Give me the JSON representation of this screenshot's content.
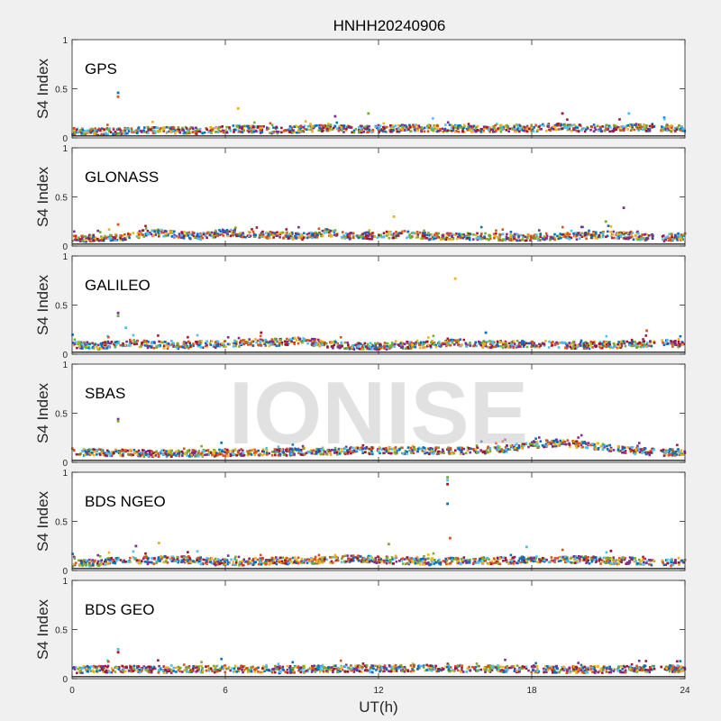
{
  "figure": {
    "title": "HNHH20240906",
    "xlabel": "UT(h)",
    "ylabel": "S4 Index",
    "watermark": "IONISE",
    "background": "#f0f0f0",
    "axes_background": "#ffffff"
  },
  "chart_data": {
    "type": "scatter",
    "xlim": [
      0,
      24
    ],
    "ylim": [
      0,
      1
    ],
    "xticks": [
      0,
      6,
      12,
      18,
      24
    ],
    "yticks": [
      0,
      0.5,
      1
    ],
    "grid": false,
    "series_colors": [
      "#0072bd",
      "#d95319",
      "#edb120",
      "#7e2f8e",
      "#77ac30",
      "#4dbeee",
      "#a2142f"
    ],
    "panels": [
      {
        "label": "GPS",
        "baseline": [
          [
            0,
            0.07
          ],
          [
            1,
            0.06
          ],
          [
            2,
            0.07
          ],
          [
            3,
            0.08
          ],
          [
            4,
            0.08
          ],
          [
            5,
            0.07
          ],
          [
            6,
            0.09
          ],
          [
            7,
            0.09
          ],
          [
            8,
            0.08
          ],
          [
            9,
            0.09
          ],
          [
            10,
            0.1
          ],
          [
            11,
            0.09
          ],
          [
            12,
            0.09
          ],
          [
            13,
            0.1
          ],
          [
            14,
            0.1
          ],
          [
            15,
            0.1
          ],
          [
            16,
            0.09
          ],
          [
            17,
            0.1
          ],
          [
            18,
            0.1
          ],
          [
            19,
            0.11
          ],
          [
            20,
            0.1
          ],
          [
            21,
            0.1
          ],
          [
            22,
            0.11
          ],
          [
            23,
            0.1
          ],
          [
            24,
            0.1
          ]
        ],
        "spikes": [
          [
            1.8,
            0.46
          ],
          [
            1.8,
            0.42
          ],
          [
            6.5,
            0.3
          ],
          [
            10.3,
            0.22
          ],
          [
            11.6,
            0.25
          ],
          [
            21.8,
            0.25
          ],
          [
            19.2,
            0.25
          ]
        ]
      },
      {
        "label": "GLONASS",
        "baseline": [
          [
            0,
            0.08
          ],
          [
            1,
            0.08
          ],
          [
            2,
            0.09
          ],
          [
            3,
            0.14
          ],
          [
            4,
            0.12
          ],
          [
            5,
            0.1
          ],
          [
            6,
            0.14
          ],
          [
            7,
            0.12
          ],
          [
            8,
            0.11
          ],
          [
            9,
            0.1
          ],
          [
            10,
            0.14
          ],
          [
            11,
            0.1
          ],
          [
            12,
            0.11
          ],
          [
            13,
            0.12
          ],
          [
            14,
            0.1
          ],
          [
            15,
            0.1
          ],
          [
            16,
            0.1
          ],
          [
            17,
            0.09
          ],
          [
            18,
            0.09
          ],
          [
            19,
            0.1
          ],
          [
            20,
            0.1
          ],
          [
            21,
            0.12
          ],
          [
            22,
            0.1
          ],
          [
            23,
            0.08
          ],
          [
            24,
            0.1
          ]
        ],
        "spikes": [
          [
            1.8,
            0.22
          ],
          [
            12.6,
            0.3
          ],
          [
            21.6,
            0.39
          ],
          [
            20.9,
            0.25
          ]
        ]
      },
      {
        "label": "GALILEO",
        "baseline": [
          [
            0,
            0.1
          ],
          [
            1,
            0.08
          ],
          [
            2,
            0.12
          ],
          [
            3,
            0.1
          ],
          [
            4,
            0.09
          ],
          [
            5,
            0.1
          ],
          [
            6,
            0.1
          ],
          [
            7,
            0.12
          ],
          [
            8,
            0.12
          ],
          [
            9,
            0.14
          ],
          [
            10,
            0.1
          ],
          [
            11,
            0.08
          ],
          [
            12,
            0.08
          ],
          [
            13,
            0.09
          ],
          [
            14,
            0.1
          ],
          [
            15,
            0.12
          ],
          [
            16,
            0.1
          ],
          [
            17,
            0.1
          ],
          [
            18,
            0.11
          ],
          [
            19,
            0.1
          ],
          [
            20,
            0.09
          ],
          [
            21,
            0.1
          ],
          [
            22,
            0.1
          ],
          [
            23,
            0.12
          ],
          [
            24,
            0.1
          ]
        ],
        "spikes": [
          [
            15,
            0.77
          ],
          [
            1.8,
            0.42
          ],
          [
            1.8,
            0.39
          ],
          [
            2.1,
            0.27
          ],
          [
            7.4,
            0.22
          ],
          [
            16.2,
            0.22
          ],
          [
            22.5,
            0.24
          ]
        ]
      },
      {
        "label": "SBAS",
        "baseline": [
          [
            0,
            0.1
          ],
          [
            1,
            0.1
          ],
          [
            2,
            0.1
          ],
          [
            3,
            0.09
          ],
          [
            4,
            0.09
          ],
          [
            5,
            0.09
          ],
          [
            6,
            0.1
          ],
          [
            7,
            0.1
          ],
          [
            8,
            0.1
          ],
          [
            9,
            0.11
          ],
          [
            10,
            0.11
          ],
          [
            11,
            0.12
          ],
          [
            12,
            0.12
          ],
          [
            13,
            0.12
          ],
          [
            14,
            0.12
          ],
          [
            15,
            0.12
          ],
          [
            16,
            0.12
          ],
          [
            17,
            0.14
          ],
          [
            18,
            0.18
          ],
          [
            19,
            0.2
          ],
          [
            20,
            0.18
          ],
          [
            21,
            0.15
          ],
          [
            22,
            0.12
          ],
          [
            23,
            0.1
          ],
          [
            24,
            0.1
          ]
        ],
        "spikes": [
          [
            1.8,
            0.44
          ],
          [
            1.8,
            0.42
          ]
        ]
      },
      {
        "label": "BDS NGEO",
        "baseline": [
          [
            0,
            0.07
          ],
          [
            1,
            0.08
          ],
          [
            2,
            0.12
          ],
          [
            3,
            0.1
          ],
          [
            4,
            0.12
          ],
          [
            5,
            0.1
          ],
          [
            6,
            0.08
          ],
          [
            7,
            0.09
          ],
          [
            8,
            0.1
          ],
          [
            9,
            0.1
          ],
          [
            10,
            0.11
          ],
          [
            11,
            0.12
          ],
          [
            12,
            0.11
          ],
          [
            13,
            0.1
          ],
          [
            14,
            0.09
          ],
          [
            15,
            0.1
          ],
          [
            16,
            0.1
          ],
          [
            17,
            0.1
          ],
          [
            18,
            0.12
          ],
          [
            19,
            0.12
          ],
          [
            20,
            0.11
          ],
          [
            21,
            0.1
          ],
          [
            22,
            0.1
          ],
          [
            23,
            0.08
          ],
          [
            24,
            0.08
          ]
        ],
        "spikes": [
          [
            14.7,
            0.95
          ],
          [
            14.7,
            0.92
          ],
          [
            14.7,
            0.88
          ],
          [
            14.7,
            0.68
          ],
          [
            14.8,
            0.33
          ],
          [
            3.4,
            0.28
          ],
          [
            2.5,
            0.25
          ],
          [
            12.4,
            0.27
          ],
          [
            17.8,
            0.24
          ],
          [
            21.1,
            0.2
          ]
        ]
      },
      {
        "label": "BDS GEO",
        "baseline": [
          [
            0,
            0.09
          ],
          [
            2,
            0.1
          ],
          [
            4,
            0.09
          ],
          [
            6,
            0.1
          ],
          [
            8,
            0.09
          ],
          [
            10,
            0.1
          ],
          [
            12,
            0.1
          ],
          [
            14,
            0.11
          ],
          [
            16,
            0.1
          ],
          [
            18,
            0.1
          ],
          [
            20,
            0.09
          ],
          [
            22,
            0.1
          ],
          [
            24,
            0.1
          ]
        ],
        "spikes": [
          [
            1.8,
            0.3
          ],
          [
            1.8,
            0.27
          ]
        ]
      }
    ]
  }
}
